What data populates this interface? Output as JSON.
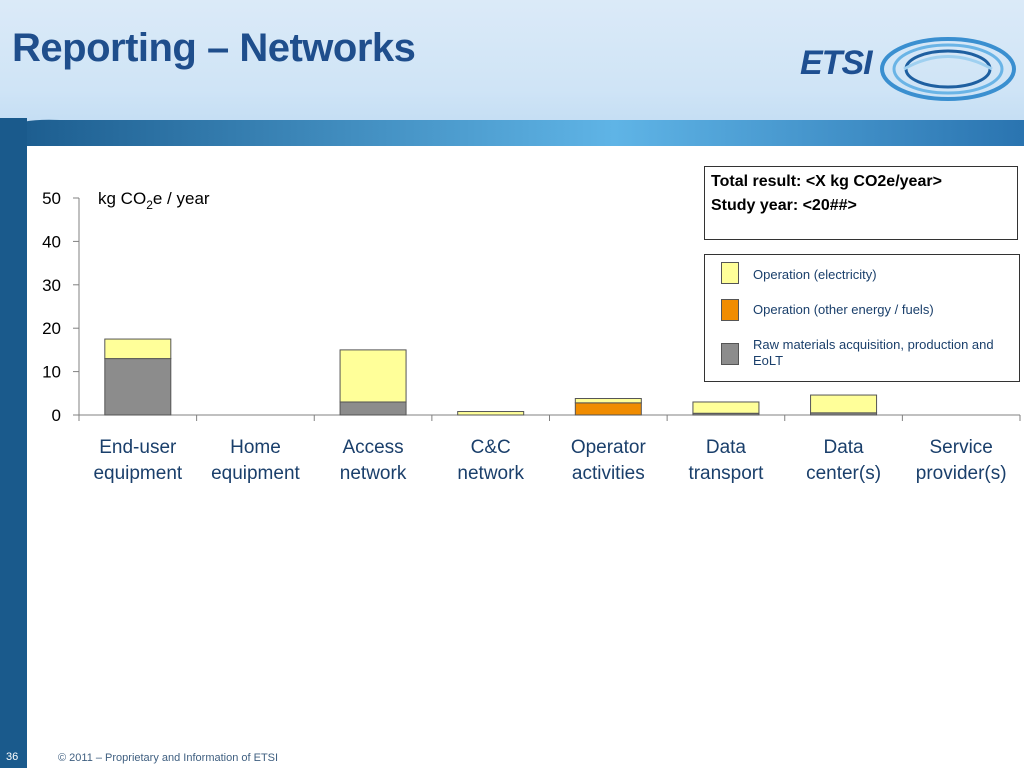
{
  "slide": {
    "title": "Reporting – Networks",
    "logo_text": "ETSI",
    "page_number": "36",
    "footer": "© 2011 – Proprietary and Information of ETSI"
  },
  "result_box": {
    "line1": "Total result: <X kg CO2e/year>",
    "line2": "Study year: <20##>"
  },
  "colors": {
    "operation_electricity": "#ffff99",
    "operation_other": "#f08c00",
    "raw_materials": "#8c8c8c"
  },
  "chart_data": {
    "type": "bar",
    "stacked": true,
    "ylabel_main": "kg CO",
    "ylabel_sub": "2",
    "ylabel_rest": "e / year",
    "ylim": [
      0,
      50
    ],
    "yticks": [
      0,
      10,
      20,
      30,
      40,
      50
    ],
    "categories": [
      [
        "End-user",
        "equipment"
      ],
      [
        "Home",
        "equipment"
      ],
      [
        "Access",
        "network"
      ],
      [
        "C&C",
        "network"
      ],
      [
        "Operator",
        "activities"
      ],
      [
        "Data",
        "transport"
      ],
      [
        "Data",
        "center(s)"
      ],
      [
        "Service",
        "provider(s)"
      ]
    ],
    "series": [
      {
        "name": "Raw materials acquisition, production and EoLT",
        "color": "#8c8c8c",
        "values": [
          13,
          0,
          3,
          0,
          0,
          0.4,
          0.5,
          0
        ]
      },
      {
        "name": "Operation (other energy / fuels)",
        "color": "#f08c00",
        "values": [
          0,
          0,
          0,
          0,
          2.8,
          0,
          0,
          0
        ]
      },
      {
        "name": "Operation (electricity)",
        "color": "#ffff99",
        "values": [
          4.5,
          0,
          12,
          0.8,
          1,
          2.6,
          4.1,
          0
        ]
      }
    ],
    "legend": [
      {
        "label": "Operation (electricity)",
        "color": "#ffff99"
      },
      {
        "label": "Operation (other energy / fuels)",
        "color": "#f08c00"
      },
      {
        "label": "Raw materials acquisition, production and EoLT",
        "color": "#8c8c8c"
      }
    ],
    "legend_position": "top-right"
  }
}
